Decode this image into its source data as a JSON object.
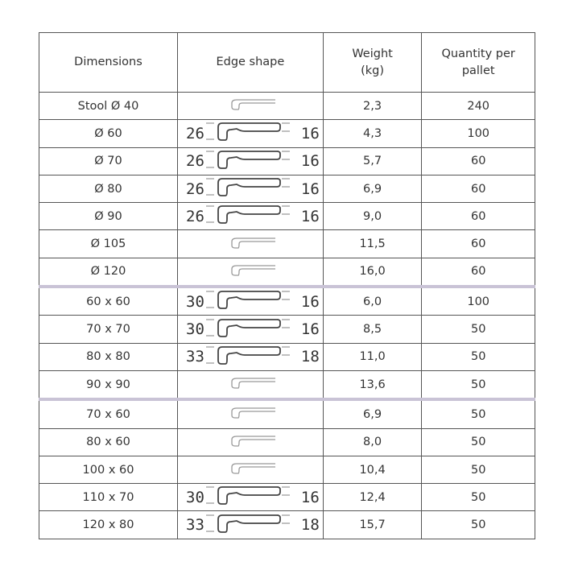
{
  "headers": {
    "dimensions": "Dimensions",
    "edge_shape": "Edge shape",
    "weight": "Weight (kg)",
    "quantity": "Quantity per pallet"
  },
  "groups": [
    {
      "rows": [
        {
          "dimensions": "Stool Ø 40",
          "edge_left": "",
          "edge_right": "",
          "weight": "2,3",
          "quantity": "240"
        },
        {
          "dimensions": "Ø 60",
          "edge_left": "26",
          "edge_right": "16",
          "weight": "4,3",
          "quantity": "100"
        },
        {
          "dimensions": "Ø 70",
          "edge_left": "26",
          "edge_right": "16",
          "weight": "5,7",
          "quantity": "60"
        },
        {
          "dimensions": "Ø 80",
          "edge_left": "26",
          "edge_right": "16",
          "weight": "6,9",
          "quantity": "60"
        },
        {
          "dimensions": "Ø 90",
          "edge_left": "26",
          "edge_right": "16",
          "weight": "9,0",
          "quantity": "60"
        },
        {
          "dimensions": "Ø 105",
          "edge_left": "",
          "edge_right": "",
          "weight": "11,5",
          "quantity": "60"
        },
        {
          "dimensions": "Ø 120",
          "edge_left": "",
          "edge_right": "",
          "weight": "16,0",
          "quantity": "60"
        }
      ]
    },
    {
      "rows": [
        {
          "dimensions": "60 x 60",
          "edge_left": "30",
          "edge_right": "16",
          "weight": "6,0",
          "quantity": "100"
        },
        {
          "dimensions": "70 x 70",
          "edge_left": "30",
          "edge_right": "16",
          "weight": "8,5",
          "quantity": "50"
        },
        {
          "dimensions": "80 x 80",
          "edge_left": "33",
          "edge_right": "18",
          "weight": "11,0",
          "quantity": "50"
        },
        {
          "dimensions": "90 x 90",
          "edge_left": "",
          "edge_right": "",
          "weight": "13,6",
          "quantity": "50"
        }
      ]
    },
    {
      "rows": [
        {
          "dimensions": "70 x 60",
          "edge_left": "",
          "edge_right": "",
          "weight": "6,9",
          "quantity": "50"
        },
        {
          "dimensions": "80 x 60",
          "edge_left": "",
          "edge_right": "",
          "weight": "8,0",
          "quantity": "50"
        },
        {
          "dimensions": "100 x 60",
          "edge_left": "",
          "edge_right": "",
          "weight": "10,4",
          "quantity": "50"
        },
        {
          "dimensions": "110 x 70",
          "edge_left": "30",
          "edge_right": "16",
          "weight": "12,4",
          "quantity": "50"
        },
        {
          "dimensions": "120 x 80",
          "edge_left": "33",
          "edge_right": "18",
          "weight": "15,7",
          "quantity": "50"
        }
      ]
    }
  ],
  "colors": {
    "group_separator": "#c9c3d6",
    "profile_plain": "#999999",
    "profile_dimensioned": "#444444"
  }
}
